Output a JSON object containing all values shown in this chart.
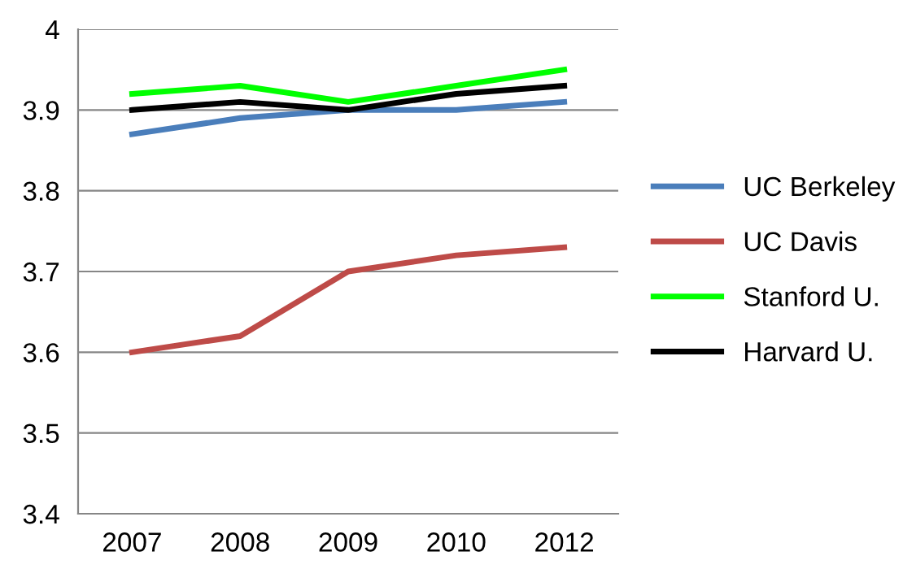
{
  "chart_data": {
    "type": "line",
    "categories": [
      "2007",
      "2008",
      "2009",
      "2010",
      "2012"
    ],
    "series": [
      {
        "name": "UC Berkeley",
        "color": "#4a7ebb",
        "values": [
          3.87,
          3.89,
          3.9,
          3.9,
          3.91
        ]
      },
      {
        "name": "UC Davis",
        "color": "#be4b48",
        "values": [
          3.6,
          3.62,
          3.7,
          3.72,
          3.73
        ]
      },
      {
        "name": "Stanford U.",
        "color": "#00ff00",
        "values": [
          3.92,
          3.93,
          3.91,
          3.93,
          3.95
        ]
      },
      {
        "name": "Harvard U.",
        "color": "#000000",
        "values": [
          3.9,
          3.91,
          3.9,
          3.92,
          3.93
        ]
      }
    ],
    "ylim": [
      3.4,
      4
    ],
    "yticks": [
      {
        "value": 3.4,
        "label": "3.4"
      },
      {
        "value": 3.5,
        "label": "3.5"
      },
      {
        "value": 3.6,
        "label": "3.6"
      },
      {
        "value": 3.7,
        "label": "3.7"
      },
      {
        "value": 3.8,
        "label": "3.8"
      },
      {
        "value": 3.9,
        "label": "3.9"
      },
      {
        "value": 4,
        "label": "4"
      }
    ],
    "grid": "y",
    "legend": "right",
    "marker": "none",
    "line_style": "solid"
  }
}
